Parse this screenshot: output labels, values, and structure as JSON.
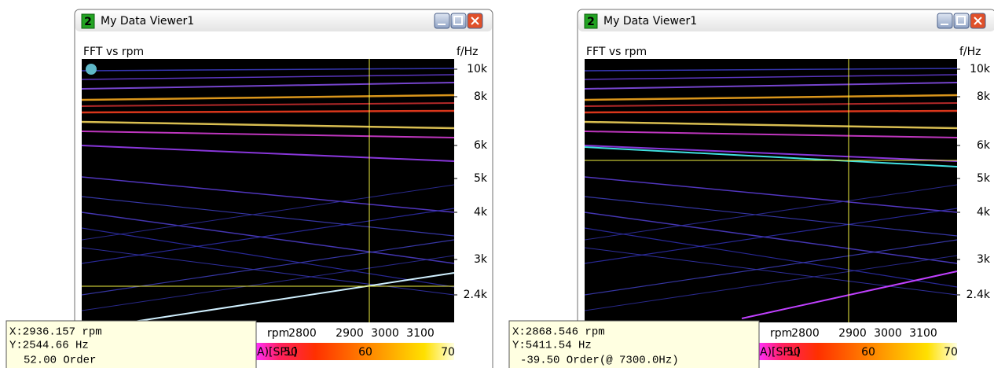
{
  "windows": [
    {
      "icon_label": "2",
      "title": "My Data Viewer1",
      "plot_label": "FFT vs rpm",
      "freq_unit": "f/Hz",
      "freq_ticks": [
        "10k",
        "8k",
        "6k",
        "5k",
        "4k",
        "3k",
        "2.4k"
      ],
      "rpm_unit": "rpm",
      "rpm_ticks": [
        "2800",
        "2900",
        "3000",
        "3100"
      ],
      "colorbar_label": "A)[SPL]",
      "colorbar_ticks": [
        "50",
        "60",
        "70"
      ],
      "readout": [
        "X:2936.157 rpm",
        "Y:2544.66 Hz",
        "52.00 Order"
      ]
    },
    {
      "icon_label": "2",
      "title": "My Data Viewer1",
      "plot_label": "FFT vs rpm",
      "freq_unit": "f/Hz",
      "freq_ticks": [
        "10k",
        "8k",
        "6k",
        "5k",
        "4k",
        "3k",
        "2.4k"
      ],
      "rpm_unit": "rpm",
      "rpm_ticks": [
        "2800",
        "2900",
        "3000",
        "3100"
      ],
      "colorbar_label": "A)[SPL]",
      "colorbar_ticks": [
        "50",
        "60",
        "70"
      ],
      "readout": [
        "X:2868.546 rpm",
        "Y:5411.54 Hz",
        "-39.50 Order(@ 7300.0Hz)"
      ]
    }
  ]
}
